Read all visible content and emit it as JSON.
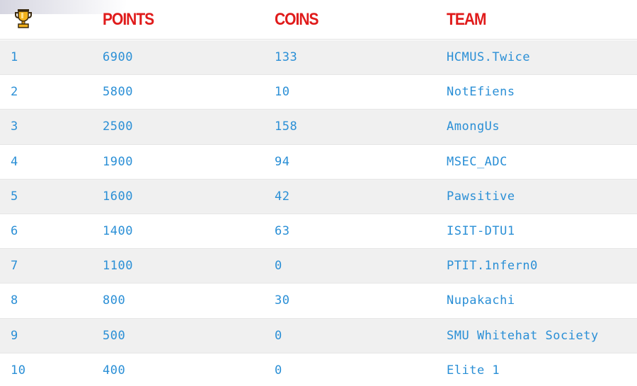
{
  "colors": {
    "header_text": "#e01b1b",
    "cell_text": "#2a8fd6",
    "row_odd": "#f0f0f0",
    "row_even": "#ffffff"
  },
  "header": {
    "rank_icon": "trophy-icon",
    "points_label": "POINTS",
    "coins_label": "COINS",
    "team_label": "TEAM"
  },
  "rows": [
    {
      "rank": "1",
      "points": "6900",
      "coins": "133",
      "team": "HCMUS.Twice"
    },
    {
      "rank": "2",
      "points": "5800",
      "coins": "10",
      "team": "NotEfiens"
    },
    {
      "rank": "3",
      "points": "2500",
      "coins": "158",
      "team": "AmongUs"
    },
    {
      "rank": "4",
      "points": "1900",
      "coins": "94",
      "team": "MSEC_ADC"
    },
    {
      "rank": "5",
      "points": "1600",
      "coins": "42",
      "team": "Pawsitive"
    },
    {
      "rank": "6",
      "points": "1400",
      "coins": "63",
      "team": "ISIT-DTU1"
    },
    {
      "rank": "7",
      "points": "1100",
      "coins": "0",
      "team": "PTIT.1nfern0"
    },
    {
      "rank": "8",
      "points": "800",
      "coins": "30",
      "team": "Nupakachi"
    },
    {
      "rank": "9",
      "points": "500",
      "coins": "0",
      "team": "SMU Whitehat Society"
    },
    {
      "rank": "10",
      "points": "400",
      "coins": "0",
      "team": "Elite 1"
    }
  ]
}
